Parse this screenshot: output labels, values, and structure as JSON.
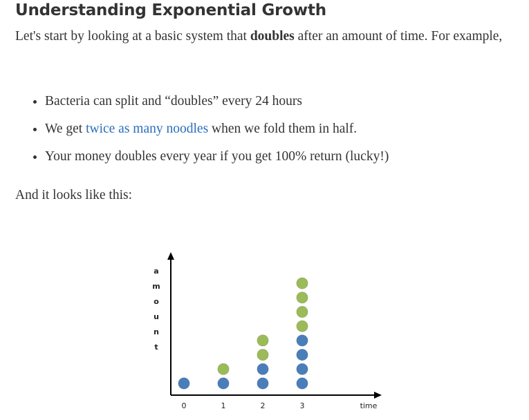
{
  "heading": "Understanding Exponential Growth",
  "intro": {
    "before": "Let's start by looking at a basic system that ",
    "bold": "doubles",
    "after": " after an amount of time. For example,"
  },
  "examples": [
    {
      "text": "Bacteria can split and “doubles” every 24 hours"
    },
    {
      "before": "We get ",
      "link": "twice as many noodles",
      "after": " when we fold them in half."
    },
    {
      "text": "Your money doubles every year if you get 100% return (lucky!)"
    }
  ],
  "outro": "And it looks like this:",
  "chart_data": {
    "type": "scatter",
    "x_label": "time",
    "y_label_letters": [
      "a",
      "m",
      "o",
      "u",
      "n",
      "t"
    ],
    "x_ticks": [
      "0",
      "1",
      "2",
      "3"
    ],
    "columns": [
      {
        "x": "0",
        "existing": 1,
        "new": 0
      },
      {
        "x": "1",
        "existing": 1,
        "new": 1
      },
      {
        "x": "2",
        "existing": 2,
        "new": 2
      },
      {
        "x": "3",
        "existing": 4,
        "new": 4
      }
    ],
    "colors": {
      "existing": "#4a7ebb",
      "new": "#9bbb59",
      "axis": "#000000"
    }
  }
}
